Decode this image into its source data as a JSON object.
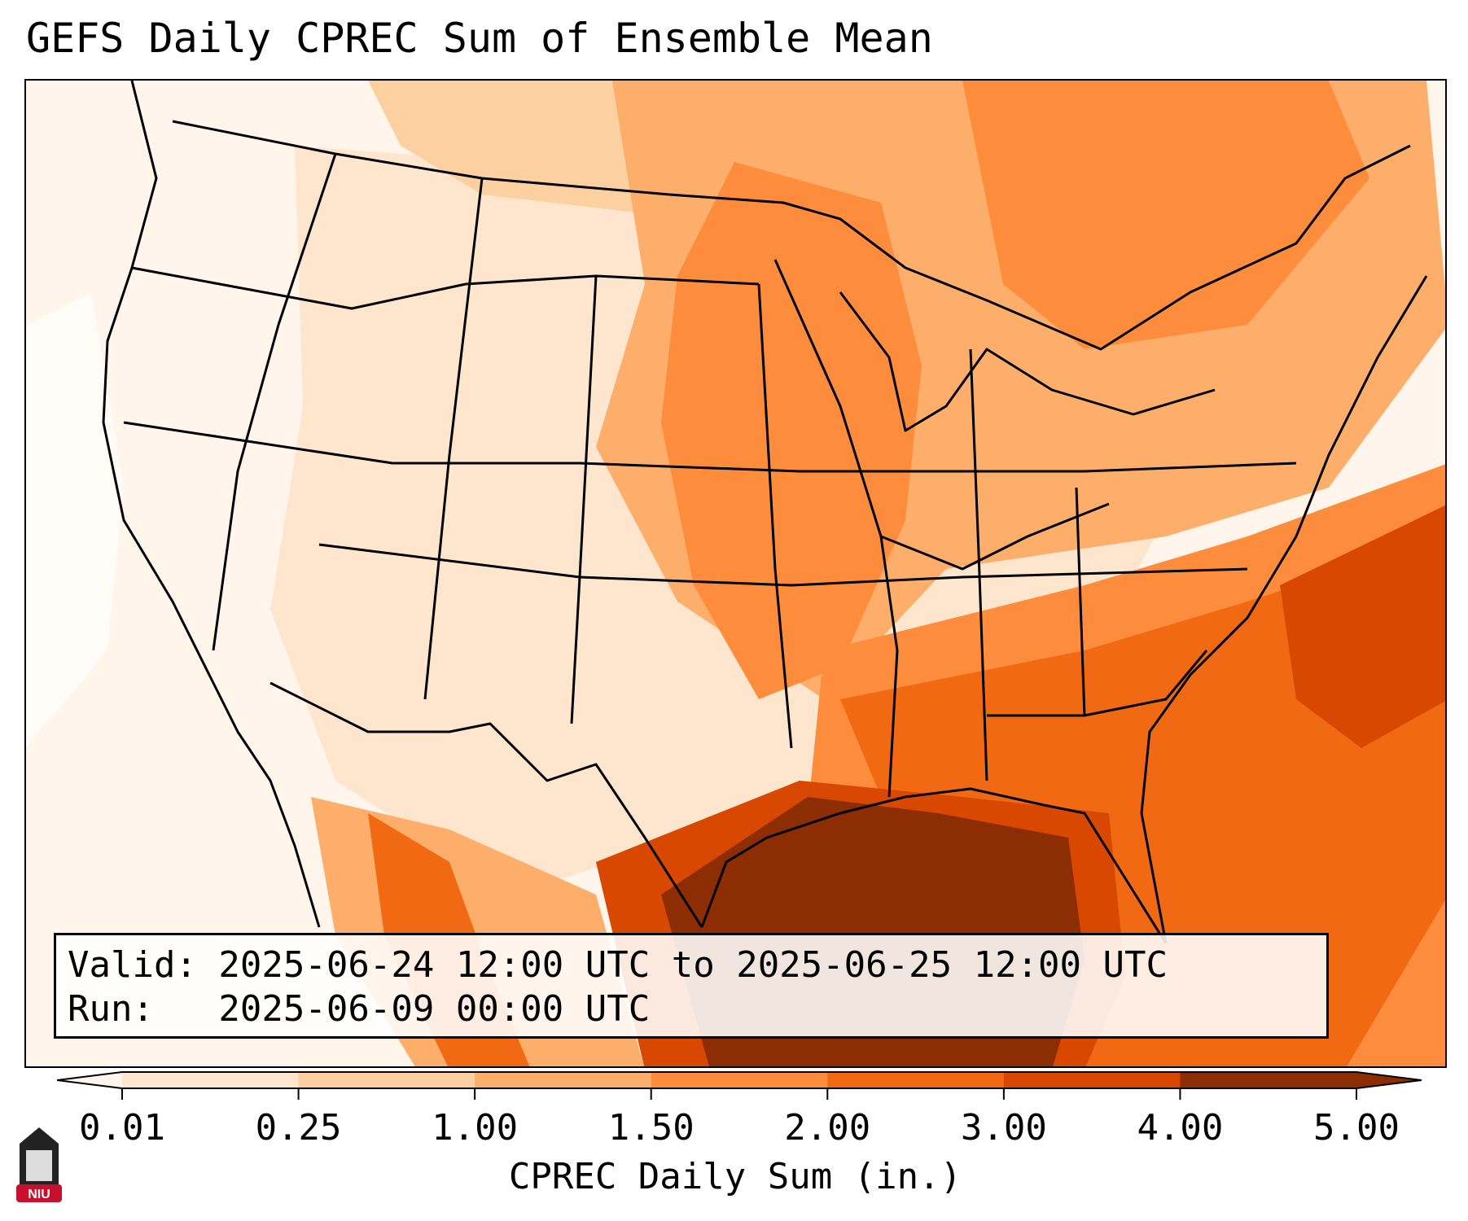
{
  "title": "GEFS Daily CPREC Sum of Ensemble Mean",
  "info": {
    "valid_line": "Valid: 2025-06-24 12:00 UTC to 2025-06-25 12:00 UTC",
    "run_line": "Run:   2025-06-09 00:00 UTC"
  },
  "colorbar": {
    "label": "CPREC Daily Sum (in.)",
    "ticks": [
      "0.01",
      "0.25",
      "1.00",
      "1.50",
      "2.00",
      "3.00",
      "4.00",
      "5.00"
    ],
    "colors": [
      "#fff5eb",
      "#fee6ce",
      "#fdd0a2",
      "#fdae6b",
      "#fd8d3c",
      "#f16913",
      "#d94801",
      "#8c2d04"
    ],
    "extend": "both"
  },
  "logo": {
    "text": "NIU",
    "color": "#c8102e"
  },
  "colors": {
    "lightest": "#fff5eb",
    "darkest": "#8c2d04",
    "boundaries": "#000000"
  }
}
